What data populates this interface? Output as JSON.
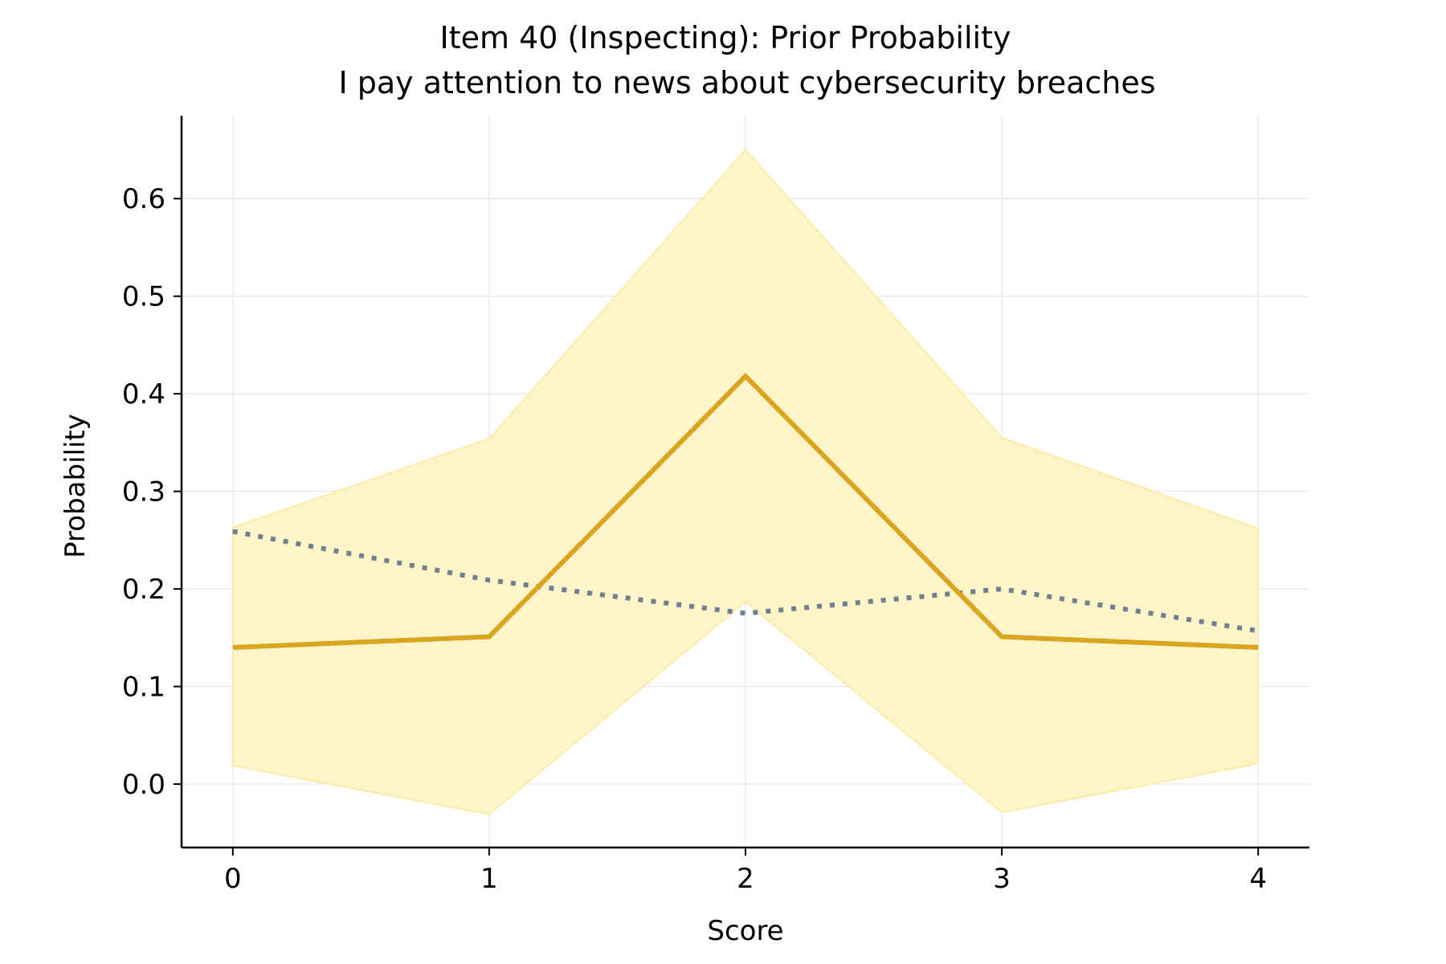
{
  "chart_data": {
    "type": "line",
    "title": "Item 40 (Inspecting): Prior Probability",
    "subtitle": "I pay attention to news about cybersecurity breaches",
    "xlabel": "Score",
    "ylabel": "Probability",
    "x": [
      0,
      1,
      2,
      3,
      4
    ],
    "xticks": [
      "0",
      "1",
      "2",
      "3",
      "4"
    ],
    "yticks": [
      "0.0",
      "0.1",
      "0.2",
      "0.3",
      "0.4",
      "0.5",
      "0.6"
    ],
    "ytick_values": [
      0.0,
      0.1,
      0.2,
      0.3,
      0.4,
      0.5,
      0.6
    ],
    "xlim": [
      -0.2,
      4.2
    ],
    "ylim": [
      -0.065,
      0.685
    ],
    "grid": true,
    "series": [
      {
        "kind": "line",
        "style": "solid",
        "values": [
          0.14,
          0.151,
          0.418,
          0.151,
          0.14
        ]
      },
      {
        "kind": "line",
        "style": "dotted",
        "values": [
          0.259,
          0.209,
          0.175,
          0.2,
          0.157
        ]
      },
      {
        "kind": "band",
        "lower": [
          0.019,
          -0.031,
          0.187,
          -0.029,
          0.021
        ],
        "upper": [
          0.263,
          0.354,
          0.65,
          0.355,
          0.262
        ]
      }
    ],
    "colors": {
      "main_line": "#DAA520",
      "dotted_line": "#708090",
      "band_fill": "#FFF5C8",
      "band_edge": "#FCEBA6",
      "grid": "#EBEBEB",
      "axis": "#000000"
    }
  }
}
